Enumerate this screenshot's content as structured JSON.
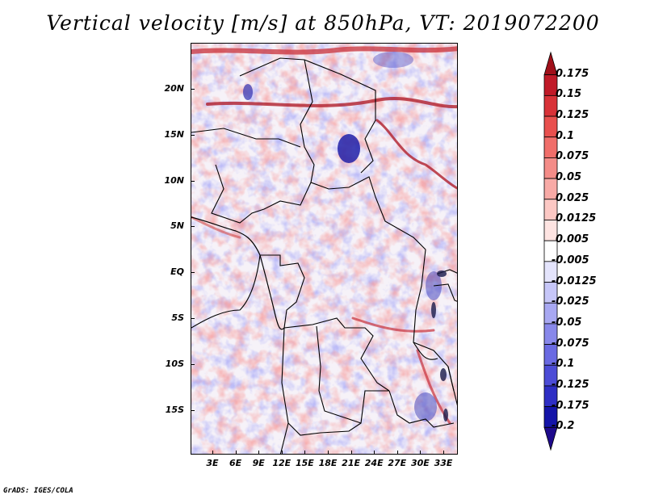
{
  "title": "Vertical velocity [m/s] at 850hPa, VT: 2019072200",
  "credit": "GrADS: IGES/COLA",
  "map": {
    "lat_labels": [
      "20N",
      "15N",
      "10N",
      "5N",
      "EQ",
      "5S",
      "10S",
      "15S"
    ],
    "lon_labels": [
      "3E",
      "6E",
      "9E",
      "12E",
      "15E",
      "18E",
      "21E",
      "24E",
      "27E",
      "30E",
      "33E"
    ]
  },
  "colorbar": {
    "labels": [
      "0.175",
      "0.15",
      "0.125",
      "0.1",
      "0.075",
      "0.05",
      "0.025",
      "0.0125",
      "0.005",
      "-0.005",
      "-0.0125",
      "-0.025",
      "-0.05",
      "-0.075",
      "-0.1",
      "-0.125",
      "-0.175",
      "-0.2"
    ],
    "colors": [
      "#a0101a",
      "#c01a28",
      "#d83238",
      "#e8504e",
      "#f06e6a",
      "#f48c88",
      "#f8aaa6",
      "#fcc8c4",
      "#fee4e2",
      "#ffffff",
      "#e4e4fc",
      "#c6c6f8",
      "#a8a8f2",
      "#8888ea",
      "#6a6ae2",
      "#4c4cd6",
      "#2e2ec4",
      "#1414a8",
      "#1e0a8c"
    ]
  }
}
